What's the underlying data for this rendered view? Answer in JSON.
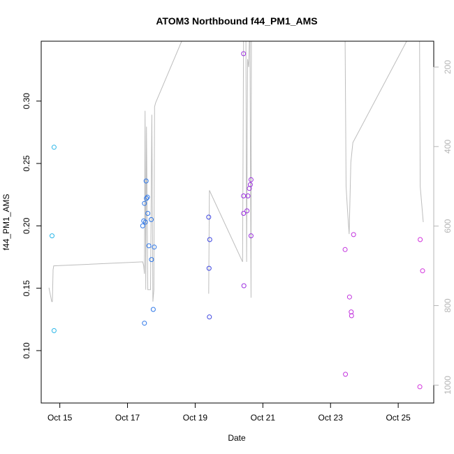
{
  "chart_data": {
    "type": "scatter",
    "title": "ATOM3 Northbound f44_PM1_AMS",
    "xlabel": "Date",
    "ylabel": "f44_PM1_AMS",
    "x_unit": "days since Oct 1",
    "xlim": [
      14.45,
      26.05
    ],
    "ylim": [
      0.058,
      0.348
    ],
    "x_ticks": [
      {
        "value": 15,
        "label": "Oct 15"
      },
      {
        "value": 17,
        "label": "Oct 17"
      },
      {
        "value": 19,
        "label": "Oct 19"
      },
      {
        "value": 21,
        "label": "Oct 21"
      },
      {
        "value": 23,
        "label": "Oct 23"
      },
      {
        "value": 25,
        "label": "Oct 25"
      }
    ],
    "y_ticks": [
      {
        "value": 0.1,
        "label": "0.10"
      },
      {
        "value": 0.15,
        "label": "0.15"
      },
      {
        "value": 0.2,
        "label": "0.20"
      },
      {
        "value": 0.25,
        "label": "0.25"
      },
      {
        "value": 0.3,
        "label": "0.30"
      }
    ],
    "right_axis": {
      "label": "",
      "inverted": true,
      "range": [
        135,
        1045
      ],
      "ticks": [
        {
          "value": 200,
          "label": "200"
        },
        {
          "value": 400,
          "label": "400"
        },
        {
          "value": 600,
          "label": "600"
        },
        {
          "value": 800,
          "label": "800"
        },
        {
          "value": 1000,
          "label": "1000"
        }
      ],
      "color": "#b5b5b5"
    },
    "series": [
      {
        "name": "points",
        "type": "scatter",
        "points": [
          {
            "x": 14.77,
            "y": 0.192,
            "color": "#29b6e8"
          },
          {
            "x": 14.83,
            "y": 0.263,
            "color": "#29b6e8"
          },
          {
            "x": 14.83,
            "y": 0.116,
            "color": "#29b6e8"
          },
          {
            "x": 17.45,
            "y": 0.2,
            "color": "#2e77e8"
          },
          {
            "x": 17.48,
            "y": 0.204,
            "color": "#2e77e8"
          },
          {
            "x": 17.5,
            "y": 0.218,
            "color": "#2e77e8"
          },
          {
            "x": 17.5,
            "y": 0.122,
            "color": "#2e77e8"
          },
          {
            "x": 17.53,
            "y": 0.203,
            "color": "#2e77e8"
          },
          {
            "x": 17.55,
            "y": 0.236,
            "color": "#2e77e8"
          },
          {
            "x": 17.56,
            "y": 0.222,
            "color": "#2e77e8"
          },
          {
            "x": 17.59,
            "y": 0.223,
            "color": "#2e77e8"
          },
          {
            "x": 17.6,
            "y": 0.21,
            "color": "#2e77e8"
          },
          {
            "x": 17.63,
            "y": 0.184,
            "color": "#2e77e8"
          },
          {
            "x": 17.7,
            "y": 0.205,
            "color": "#2e77e8"
          },
          {
            "x": 17.71,
            "y": 0.173,
            "color": "#2e77e8"
          },
          {
            "x": 17.76,
            "y": 0.133,
            "color": "#2e77e8"
          },
          {
            "x": 17.79,
            "y": 0.183,
            "color": "#2e77e8"
          },
          {
            "x": 19.4,
            "y": 0.207,
            "color": "#3d45e0"
          },
          {
            "x": 19.41,
            "y": 0.166,
            "color": "#3d45e0"
          },
          {
            "x": 19.43,
            "y": 0.189,
            "color": "#3d45e0"
          },
          {
            "x": 19.42,
            "y": 0.127,
            "color": "#3d45e0"
          },
          {
            "x": 20.43,
            "y": 0.338,
            "color": "#9c2fe0"
          },
          {
            "x": 20.43,
            "y": 0.224,
            "color": "#9c2fe0"
          },
          {
            "x": 20.43,
            "y": 0.21,
            "color": "#9c2fe0"
          },
          {
            "x": 20.44,
            "y": 0.152,
            "color": "#9c2fe0"
          },
          {
            "x": 20.53,
            "y": 0.212,
            "color": "#9c2fe0"
          },
          {
            "x": 20.56,
            "y": 0.224,
            "color": "#9c2fe0"
          },
          {
            "x": 20.6,
            "y": 0.23,
            "color": "#9c2fe0"
          },
          {
            "x": 20.63,
            "y": 0.233,
            "color": "#9c2fe0"
          },
          {
            "x": 20.65,
            "y": 0.237,
            "color": "#9c2fe0"
          },
          {
            "x": 20.65,
            "y": 0.192,
            "color": "#9c2fe0"
          },
          {
            "x": 23.43,
            "y": 0.181,
            "color": "#c232de"
          },
          {
            "x": 23.44,
            "y": 0.081,
            "color": "#c232de"
          },
          {
            "x": 23.56,
            "y": 0.143,
            "color": "#c232de"
          },
          {
            "x": 23.61,
            "y": 0.131,
            "color": "#c232de"
          },
          {
            "x": 23.62,
            "y": 0.128,
            "color": "#c232de"
          },
          {
            "x": 23.68,
            "y": 0.193,
            "color": "#c232de"
          },
          {
            "x": 25.65,
            "y": 0.189,
            "color": "#d230dc"
          },
          {
            "x": 25.64,
            "y": 0.071,
            "color": "#d230dc"
          },
          {
            "x": 25.72,
            "y": 0.164,
            "color": "#d230dc"
          }
        ]
      },
      {
        "name": "right-axis trace",
        "type": "line",
        "axis": "right",
        "color": "#bdbdbd",
        "segments": [
          [
            [
              14.68,
              755
            ],
            [
              14.76,
              790
            ],
            [
              14.78,
              790
            ],
            [
              14.8,
              710
            ],
            [
              14.82,
              700
            ],
            [
              17.45,
              690
            ],
            [
              17.48,
              700
            ],
            [
              17.5,
              720
            ],
            [
              17.52,
              310
            ],
            [
              17.54,
              760
            ],
            [
              17.56,
              350
            ],
            [
              17.6,
              760
            ],
            [
              17.68,
              760
            ],
            [
              17.72,
              320
            ],
            [
              17.75,
              790
            ],
            [
              17.78,
              760
            ],
            [
              17.8,
              300
            ],
            [
              17.83,
              290
            ],
            [
              18.6,
              135
            ]
          ],
          [
            [
              19.4,
              770
            ],
            [
              19.42,
              510
            ],
            [
              20.4,
              690
            ],
            [
              20.43,
              135
            ]
          ],
          [
            [
              20.5,
              135
            ],
            [
              20.52,
              690
            ],
            [
              20.55,
              180
            ],
            [
              20.58,
              200
            ],
            [
              20.6,
              135
            ]
          ],
          [
            [
              20.62,
              135
            ],
            [
              20.65,
              780
            ],
            [
              20.66,
              135
            ]
          ],
          [
            [
              23.43,
              135
            ],
            [
              23.46,
              500
            ],
            [
              23.5,
              560
            ],
            [
              23.55,
              620
            ],
            [
              23.6,
              440
            ],
            [
              23.66,
              390
            ],
            [
              25.25,
              135
            ]
          ],
          [
            [
              25.63,
              135
            ],
            [
              25.65,
              500
            ],
            [
              25.74,
              590
            ]
          ]
        ]
      }
    ]
  }
}
